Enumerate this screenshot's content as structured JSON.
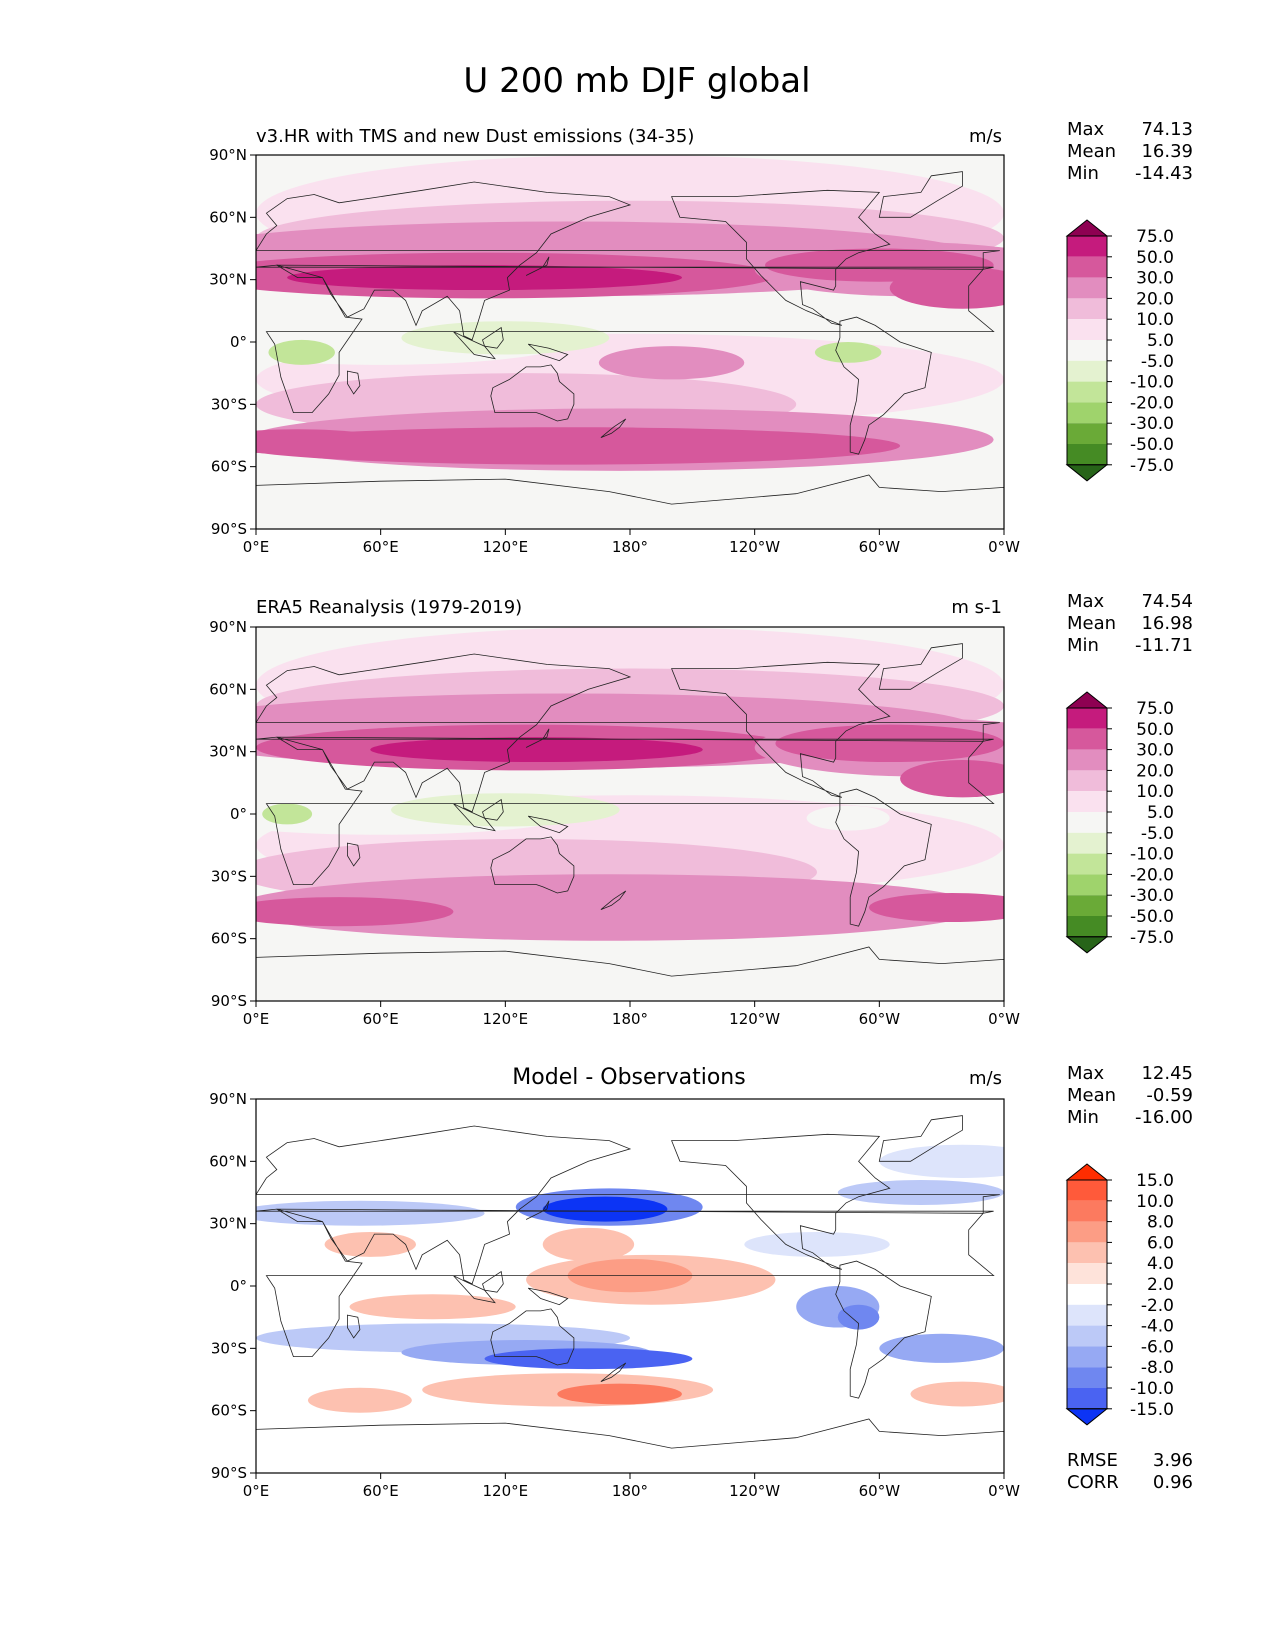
{
  "figure_title": "U 200 mb DJF global",
  "xticks": [
    "0°E",
    "60°E",
    "120°E",
    "180°",
    "120°W",
    "60°W",
    "0°W"
  ],
  "yticks": [
    "90°N",
    "60°N",
    "30°N",
    "0°",
    "30°S",
    "60°S",
    "90°S"
  ],
  "colors": {
    "land_outline": "#222222",
    "missing": "#f5f5f3"
  },
  "chart_data": [
    {
      "type": "heatmap",
      "name": "model",
      "title": "v3.HR with TMS and new Dust emissions (34-35)",
      "units": "m/s",
      "x_range": [
        0,
        360
      ],
      "y_range": [
        -90,
        90
      ],
      "stats": [
        {
          "label": "Max",
          "value": "74.13"
        },
        {
          "label": "Mean",
          "value": "16.39"
        },
        {
          "label": "Min",
          "value": "-14.43"
        }
      ],
      "colorbar": {
        "levels": [
          "75.0",
          "50.0",
          "30.0",
          "20.0",
          "10.0",
          "5.0",
          "-5.0",
          "-10.0",
          "-20.0",
          "-30.0",
          "-50.0",
          "-75.0"
        ],
        "bins": [
          "#8e0152",
          "#c51b7d",
          "#d6589c",
          "#e28dbf",
          "#f0bcda",
          "#fae1ef",
          "#f6f6f4",
          "#e4f2d0",
          "#c2e599",
          "#9fd36c",
          "#6aaa37",
          "#458b24",
          "#276419"
        ],
        "extend": "both"
      }
    },
    {
      "type": "heatmap",
      "name": "observations",
      "title": "ERA5 Reanalysis (1979-2019)",
      "units": "m s-1",
      "x_range": [
        0,
        360
      ],
      "y_range": [
        -90,
        90
      ],
      "stats": [
        {
          "label": "Max",
          "value": "74.54"
        },
        {
          "label": "Mean",
          "value": "16.98"
        },
        {
          "label": "Min",
          "value": "-11.71"
        }
      ],
      "colorbar": {
        "levels": [
          "75.0",
          "50.0",
          "30.0",
          "20.0",
          "10.0",
          "5.0",
          "-5.0",
          "-10.0",
          "-20.0",
          "-30.0",
          "-50.0",
          "-75.0"
        ],
        "bins": [
          "#8e0152",
          "#c51b7d",
          "#d6589c",
          "#e28dbf",
          "#f0bcda",
          "#fae1ef",
          "#f6f6f4",
          "#e4f2d0",
          "#c2e599",
          "#9fd36c",
          "#6aaa37",
          "#458b24",
          "#276419"
        ],
        "extend": "both"
      }
    },
    {
      "type": "heatmap",
      "name": "difference",
      "title": "Model - Observations",
      "units": "m/s",
      "x_range": [
        0,
        360
      ],
      "y_range": [
        -90,
        90
      ],
      "stats": [
        {
          "label": "Max",
          "value": "12.45"
        },
        {
          "label": "Mean",
          "value": "-0.59"
        },
        {
          "label": "Min",
          "value": "-16.00"
        }
      ],
      "extra_stats": [
        {
          "label": "RMSE",
          "value": "3.96"
        },
        {
          "label": "CORR",
          "value": "0.96"
        }
      ],
      "colorbar": {
        "levels": [
          "15.0",
          "10.0",
          "8.0",
          "6.0",
          "4.0",
          "2.0",
          "-2.0",
          "-4.0",
          "-6.0",
          "-8.0",
          "-10.0",
          "-15.0"
        ],
        "bins": [
          "#ff2d00",
          "#ff5a3a",
          "#fc7a5f",
          "#fc9d85",
          "#fdc1b0",
          "#fee3da",
          "#ffffff",
          "#dde4fb",
          "#bcc9f7",
          "#96a9f3",
          "#6f87f0",
          "#4a63f2",
          "#0c34f5"
        ],
        "extend": "both"
      }
    }
  ]
}
